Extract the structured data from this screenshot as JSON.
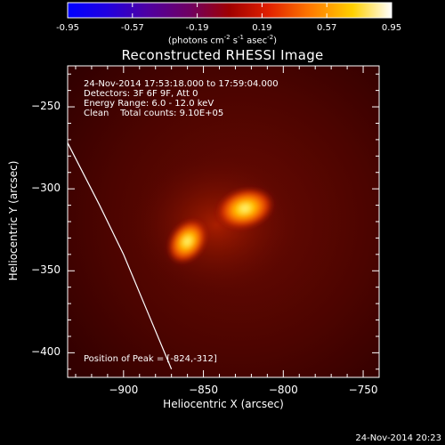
{
  "colorbar": {
    "tick_labels": [
      "-0.95",
      "-0.57",
      "-0.19",
      "0.19",
      "0.57",
      "0.95"
    ],
    "tick_values": [
      -0.95,
      -0.57,
      -0.19,
      0.19,
      0.57,
      0.95
    ],
    "units_text": "(photons cm",
    "units_exp1": "-2",
    "units_s": " s",
    "units_exp2": "-1",
    "units_asec": " asec",
    "units_exp3": "-2",
    "units_close": ")"
  },
  "info": {
    "time_range": "24-Nov-2014 17:53:18.000 to 17:59:04.000",
    "detectors": "Detectors: 3F 6F 9F, Att 0",
    "energy": "Energy Range: 6.0 - 12.0 keV",
    "clean": "Clean    Total counts: 9.10E+05",
    "peak": "Position of Peak = [-824,-312]"
  },
  "timestamp": "24-Nov-2014 20:23",
  "chart_data": {
    "type": "heatmap",
    "title": "Reconstructed RHESSI Image",
    "xlabel": "Heliocentric X (arcsec)",
    "ylabel": "Heliocentric Y (arcsec)",
    "xlim": [
      -935,
      -740
    ],
    "ylim": [
      -415,
      -225
    ],
    "x_ticks": [
      -900,
      -850,
      -800,
      -750
    ],
    "y_ticks": [
      -250,
      -300,
      -350,
      -400
    ],
    "x_tick_labels": [
      "−900",
      "−850",
      "−800",
      "−750"
    ],
    "y_tick_labels": [
      "−250",
      "−300",
      "−350",
      "−400"
    ],
    "sources": [
      {
        "x": -824,
        "y": -312,
        "peak": 0.95
      },
      {
        "x": -860,
        "y": -332,
        "peak": 0.82
      }
    ],
    "limb_curve": [
      [
        -935,
        -272
      ],
      [
        -915,
        -310
      ],
      [
        -900,
        -340
      ],
      [
        -885,
        -375
      ],
      [
        -870,
        -410
      ]
    ],
    "colormap": "red-temperature"
  }
}
